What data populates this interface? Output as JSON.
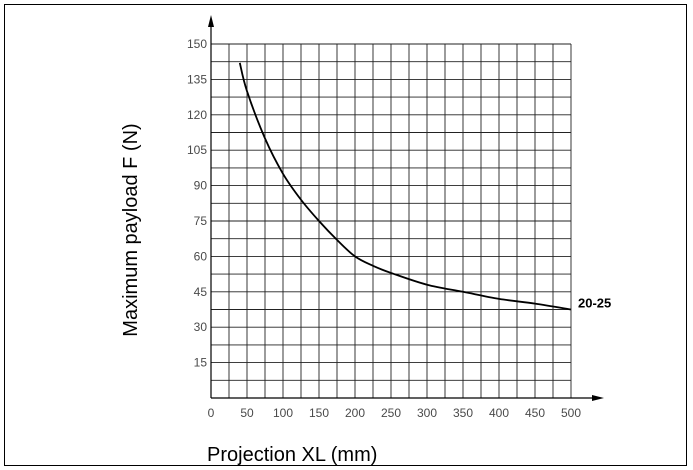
{
  "chart_data": {
    "type": "line",
    "title": "",
    "xlabel": "Projection XL (mm)",
    "ylabel": "Maximum payload F (N)",
    "xlim": [
      0,
      500
    ],
    "ylim": [
      0,
      150
    ],
    "x_ticks": [
      0,
      50,
      100,
      150,
      200,
      250,
      300,
      350,
      400,
      450,
      500
    ],
    "y_ticks": [
      15,
      30,
      45,
      60,
      75,
      90,
      105,
      120,
      135,
      150
    ],
    "grid": true,
    "grid_step_x": 25,
    "grid_step_y": 7.5,
    "series": [
      {
        "name": "20-25",
        "x": [
          40,
          50,
          75,
          100,
          125,
          150,
          175,
          200,
          225,
          250,
          300,
          350,
          400,
          450,
          500
        ],
        "y": [
          142,
          130,
          110,
          95,
          84,
          75,
          67,
          60,
          56,
          53,
          48,
          45,
          42,
          40,
          37.5
        ]
      }
    ]
  }
}
